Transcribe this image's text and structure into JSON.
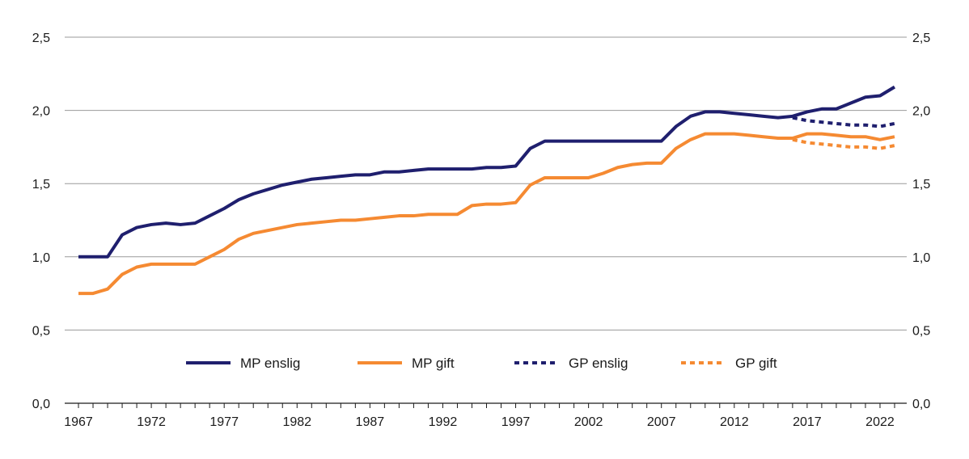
{
  "chart_data": {
    "type": "line",
    "title": "",
    "xlabel": "",
    "ylabel": "",
    "ylim": [
      0,
      2.5
    ],
    "y_ticks": [
      {
        "value": 0,
        "label": "0,0"
      },
      {
        "value": 0.5,
        "label": "0,5"
      },
      {
        "value": 1.0,
        "label": "1,0"
      },
      {
        "value": 1.5,
        "label": "1,5"
      },
      {
        "value": 2.0,
        "label": "2,0"
      },
      {
        "value": 2.5,
        "label": "2,5"
      }
    ],
    "xlim": [
      1967,
      2023
    ],
    "x_tick_labels": [
      "1967",
      "1972",
      "1977",
      "1982",
      "1987",
      "1992",
      "1997",
      "2002",
      "2007",
      "2012",
      "2017",
      "2022"
    ],
    "grid": true,
    "legend_position": "center",
    "colors": {
      "navy": "#1f1f6e",
      "orange": "#f58a32",
      "grid": "#9a9a9a"
    },
    "series": [
      {
        "name": "MP enslig",
        "color": "#1f1f6e",
        "style": "solid",
        "x": [
          1967,
          1968,
          1969,
          1970,
          1971,
          1972,
          1973,
          1974,
          1975,
          1976,
          1977,
          1978,
          1979,
          1980,
          1981,
          1982,
          1983,
          1984,
          1985,
          1986,
          1987,
          1988,
          1989,
          1990,
          1991,
          1992,
          1993,
          1994,
          1995,
          1996,
          1997,
          1998,
          1999,
          2000,
          2001,
          2002,
          2003,
          2004,
          2005,
          2006,
          2007,
          2008,
          2009,
          2010,
          2011,
          2012,
          2013,
          2014,
          2015,
          2016,
          2017,
          2018,
          2019,
          2020,
          2021,
          2022,
          2023
        ],
        "values": [
          1.0,
          1.0,
          1.0,
          1.15,
          1.2,
          1.22,
          1.23,
          1.22,
          1.23,
          1.28,
          1.33,
          1.39,
          1.43,
          1.46,
          1.49,
          1.51,
          1.53,
          1.54,
          1.55,
          1.56,
          1.56,
          1.58,
          1.58,
          1.59,
          1.6,
          1.6,
          1.6,
          1.6,
          1.61,
          1.61,
          1.62,
          1.74,
          1.79,
          1.79,
          1.79,
          1.79,
          1.79,
          1.79,
          1.79,
          1.79,
          1.79,
          1.89,
          1.96,
          1.99,
          1.99,
          1.98,
          1.97,
          1.96,
          1.95,
          1.96,
          1.99,
          2.01,
          2.01,
          2.05,
          2.09,
          2.1,
          2.16
        ]
      },
      {
        "name": "MP gift",
        "color": "#f58a32",
        "style": "solid",
        "x": [
          1967,
          1968,
          1969,
          1970,
          1971,
          1972,
          1973,
          1974,
          1975,
          1976,
          1977,
          1978,
          1979,
          1980,
          1981,
          1982,
          1983,
          1984,
          1985,
          1986,
          1987,
          1988,
          1989,
          1990,
          1991,
          1992,
          1993,
          1994,
          1995,
          1996,
          1997,
          1998,
          1999,
          2000,
          2001,
          2002,
          2003,
          2004,
          2005,
          2006,
          2007,
          2008,
          2009,
          2010,
          2011,
          2012,
          2013,
          2014,
          2015,
          2016,
          2017,
          2018,
          2019,
          2020,
          2021,
          2022,
          2023
        ],
        "values": [
          0.75,
          0.75,
          0.78,
          0.88,
          0.93,
          0.95,
          0.95,
          0.95,
          0.95,
          1.0,
          1.05,
          1.12,
          1.16,
          1.18,
          1.2,
          1.22,
          1.23,
          1.24,
          1.25,
          1.25,
          1.26,
          1.27,
          1.28,
          1.28,
          1.29,
          1.29,
          1.29,
          1.35,
          1.36,
          1.36,
          1.37,
          1.49,
          1.54,
          1.54,
          1.54,
          1.54,
          1.57,
          1.61,
          1.63,
          1.64,
          1.64,
          1.74,
          1.8,
          1.84,
          1.84,
          1.84,
          1.83,
          1.82,
          1.81,
          1.81,
          1.84,
          1.84,
          1.83,
          1.82,
          1.82,
          1.8,
          1.82
        ]
      },
      {
        "name": "GP enslig",
        "color": "#1f1f6e",
        "style": "dotted",
        "x": [
          2016,
          2017,
          2018,
          2019,
          2020,
          2021,
          2022,
          2023
        ],
        "values": [
          1.95,
          1.93,
          1.92,
          1.91,
          1.9,
          1.9,
          1.89,
          1.91
        ]
      },
      {
        "name": "GP gift",
        "color": "#f58a32",
        "style": "dotted",
        "x": [
          2016,
          2017,
          2018,
          2019,
          2020,
          2021,
          2022,
          2023
        ],
        "values": [
          1.8,
          1.78,
          1.77,
          1.76,
          1.75,
          1.75,
          1.74,
          1.76
        ]
      }
    ]
  }
}
